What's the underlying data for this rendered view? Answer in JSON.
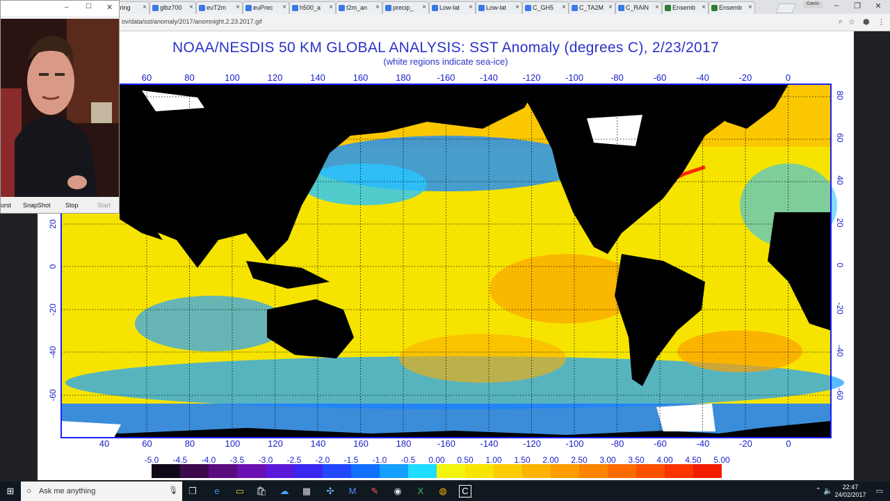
{
  "browser": {
    "tabs": [
      {
        "label": "spring",
        "color": "#f1b740"
      },
      {
        "label": "glbz700",
        "color": "#3b78e7"
      },
      {
        "label": "euT2m",
        "color": "#3b78e7"
      },
      {
        "label": "euPrec",
        "color": "#3b78e7"
      },
      {
        "label": "h500_a",
        "color": "#3b78e7"
      },
      {
        "label": "t2m_an",
        "color": "#3b78e7"
      },
      {
        "label": "precip_",
        "color": "#3b78e7"
      },
      {
        "label": "Low-lat",
        "color": "#3b78e7"
      },
      {
        "label": "Low-lat",
        "color": "#3b78e7"
      },
      {
        "label": "C_GH5",
        "color": "#3b78e7"
      },
      {
        "label": "C_TA2M",
        "color": "#3b78e7"
      },
      {
        "label": "C_RAIN",
        "color": "#3b78e7"
      },
      {
        "label": "Ensemb",
        "color": "#2e7d32"
      },
      {
        "label": "Ensemb",
        "color": "#2e7d32"
      }
    ],
    "user": "Gavin",
    "url": "ov/data/sst/anomaly/2017/anomnight.2.23.2017.gif"
  },
  "map": {
    "title": "NOAA/NESDIS 50 KM GLOBAL ANALYSIS: SST Anomaly (degrees C), 2/23/2017",
    "subtitle": "(white regions indicate sea-ice)",
    "top_lon_labels": [
      "60",
      "80",
      "100",
      "120",
      "140",
      "160",
      "180",
      "-160",
      "-140",
      "-120",
      "-100",
      "-80",
      "-60",
      "-40",
      "-20",
      "0"
    ],
    "bottom_lon_labels": [
      "40",
      "60",
      "80",
      "100",
      "120",
      "140",
      "160",
      "180",
      "-160",
      "-140",
      "-120",
      "-100",
      "-80",
      "-60",
      "-40",
      "-20",
      "0"
    ],
    "left_lat_labels": [
      "20",
      "0",
      "-20",
      "-40",
      "-60"
    ],
    "right_lat_labels": [
      "80",
      "60",
      "40",
      "20",
      "0",
      "-20",
      "-40",
      "-60"
    ],
    "colorbar_labels": [
      "-5.0",
      "-4.5",
      "-4.0",
      "-3.5",
      "-3.0",
      "-2.5",
      "-2.0",
      "-1.5",
      "-1.0",
      "-0.5",
      "0.00",
      "0.50",
      "1.00",
      "1.50",
      "2.00",
      "2.50",
      "3.00",
      "3.50",
      "4.00",
      "4.50",
      "5.00"
    ],
    "colorbar_colors": [
      "#100818",
      "#3c0a4c",
      "#5a0c80",
      "#6b10b0",
      "#5c18d8",
      "#3a28f0",
      "#2448ff",
      "#1070ff",
      "#14a0ff",
      "#20dcff",
      "#f4f40c",
      "#f8e400",
      "#fccc00",
      "#fcb400",
      "#fc9c00",
      "#fc8400",
      "#fc6c00",
      "#fc5000",
      "#fc3400",
      "#f41c00"
    ]
  },
  "webcam": {
    "buttons": [
      "urst",
      "SnapShot",
      "Stop",
      "Start"
    ]
  },
  "taskbar": {
    "search_placeholder": "Ask me anything",
    "time": "22:47",
    "date": "24/02/2017"
  }
}
